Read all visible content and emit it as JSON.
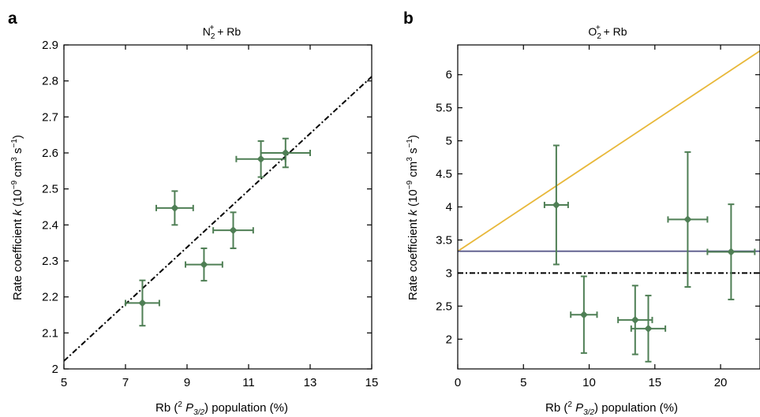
{
  "chart_data": [
    {
      "panel_letter": "a",
      "title": {
        "base": "N",
        "sub": "2",
        "sup": "+",
        "rest": " + Rb"
      },
      "type": "scatter",
      "xlabel": {
        "pre": "Rb (",
        "sup": "2",
        "italic": " P",
        "sub": "3/2",
        "post": ") population (%)"
      },
      "ylabel": {
        "pre": "Rate coefficient ",
        "italic": "k",
        "mid1": " (10",
        "sup1": "−9",
        "mid2": " cm",
        "sup2": "3",
        "mid3": " s",
        "sup3": "−1",
        "post": ")"
      },
      "xlim": [
        5,
        15
      ],
      "ylim": [
        2.0,
        2.9
      ],
      "xticks": [
        5,
        7,
        9,
        11,
        13,
        15
      ],
      "yticks": [
        2,
        2.1,
        2.2,
        2.3,
        2.4,
        2.5,
        2.6,
        2.7,
        2.8,
        2.9
      ],
      "marker_color": "#4f7f55",
      "points": [
        {
          "x": 7.55,
          "y": 2.183,
          "xerr": 0.55,
          "yerr": 0.063
        },
        {
          "x": 8.6,
          "y": 2.447,
          "xerr": 0.6,
          "yerr": 0.047
        },
        {
          "x": 9.55,
          "y": 2.29,
          "xerr": 0.6,
          "yerr": 0.045
        },
        {
          "x": 10.5,
          "y": 2.385,
          "xerr": 0.65,
          "yerr": 0.05
        },
        {
          "x": 11.4,
          "y": 2.583,
          "xerr": 0.8,
          "yerr": 0.05
        },
        {
          "x": 12.2,
          "y": 2.6,
          "xerr": 0.8,
          "yerr": 0.04
        }
      ],
      "lines": [
        {
          "style": "dashdot",
          "color": "#000000",
          "x": [
            5,
            15
          ],
          "y": [
            2.022,
            2.812
          ]
        }
      ]
    },
    {
      "panel_letter": "b",
      "title": {
        "base": "O",
        "sub": "2",
        "sup": "+",
        "rest": " + Rb"
      },
      "type": "scatter",
      "xlabel": {
        "pre": "Rb (",
        "sup": "2",
        "italic": " P",
        "sub": "3/2",
        "post": ") population (%)"
      },
      "ylabel": {
        "pre": "Rate coefficient ",
        "italic": "k",
        "mid1": " (10",
        "sup1": "−9",
        "mid2": " cm",
        "sup2": "3",
        "mid3": " s",
        "sup3": "−1",
        "post": ")"
      },
      "xlim": [
        0,
        23
      ],
      "ylim": [
        1.55,
        6.45
      ],
      "xticks": [
        0,
        5,
        10,
        15,
        20
      ],
      "yticks": [
        2,
        2.5,
        3,
        3.5,
        4,
        4.5,
        5,
        5.5,
        6
      ],
      "marker_color": "#4f7f55",
      "points": [
        {
          "x": 7.5,
          "y": 4.03,
          "xerr": 0.9,
          "yerr": 0.9
        },
        {
          "x": 9.6,
          "y": 2.37,
          "xerr": 1.0,
          "yerr": 0.58
        },
        {
          "x": 13.5,
          "y": 2.29,
          "xerr": 1.3,
          "yerr": 0.52
        },
        {
          "x": 14.5,
          "y": 2.16,
          "xerr": 1.3,
          "yerr": 0.5
        },
        {
          "x": 17.5,
          "y": 3.81,
          "xerr": 1.5,
          "yerr": 1.02
        },
        {
          "x": 20.8,
          "y": 3.32,
          "xerr": 1.8,
          "yerr": 0.72
        }
      ],
      "lines": [
        {
          "style": "solid",
          "color": "#e8b83a",
          "x": [
            0,
            23
          ],
          "y": [
            3.33,
            6.36
          ]
        },
        {
          "style": "solid",
          "color": "#5a5a8a",
          "x": [
            0,
            23
          ],
          "y": [
            3.33,
            3.33
          ]
        },
        {
          "style": "dashdot",
          "color": "#000000",
          "x": [
            0,
            23
          ],
          "y": [
            3.0,
            3.0
          ]
        }
      ]
    }
  ]
}
